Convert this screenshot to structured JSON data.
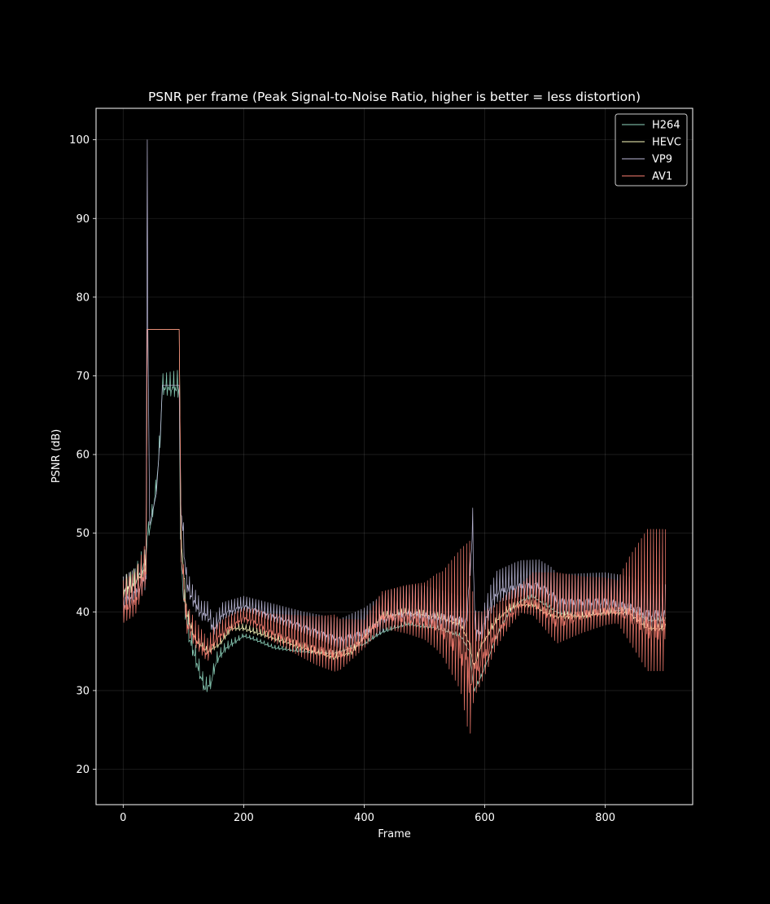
{
  "chart_data": {
    "type": "line",
    "title": "PSNR per frame (Peak Signal-to-Noise Ratio, higher is better = less distortion)",
    "xlabel": "Frame",
    "ylabel": "PSNR (dB)",
    "xlim": [
      -45,
      945
    ],
    "ylim": [
      15.5,
      104
    ],
    "xticks": [
      0,
      200,
      400,
      600,
      800
    ],
    "yticks": [
      20,
      30,
      40,
      50,
      60,
      70,
      80,
      90,
      100
    ],
    "grid": true,
    "legend_position": "top-right",
    "background": "#000000",
    "series": [
      {
        "name": "H264",
        "color": "#8fd6bf",
        "base": [
          [
            0,
            43
          ],
          [
            20,
            44
          ],
          [
            38,
            47
          ],
          [
            40,
            50
          ],
          [
            45,
            51
          ],
          [
            55,
            56
          ],
          [
            62,
            63
          ],
          [
            65,
            68.8
          ],
          [
            93,
            68.8
          ],
          [
            95,
            50
          ],
          [
            100,
            42
          ],
          [
            110,
            37
          ],
          [
            125,
            33
          ],
          [
            135,
            30.5
          ],
          [
            145,
            31
          ],
          [
            155,
            34
          ],
          [
            170,
            35.5
          ],
          [
            200,
            37
          ],
          [
            220,
            36.5
          ],
          [
            250,
            35.5
          ],
          [
            300,
            35
          ],
          [
            350,
            34.8
          ],
          [
            400,
            36
          ],
          [
            430,
            37.5
          ],
          [
            470,
            38.5
          ],
          [
            520,
            38
          ],
          [
            560,
            37
          ],
          [
            575,
            35
          ],
          [
            582,
            30
          ],
          [
            595,
            32
          ],
          [
            620,
            37
          ],
          [
            640,
            40
          ],
          [
            660,
            41.5
          ],
          [
            680,
            42
          ],
          [
            700,
            41
          ],
          [
            720,
            40
          ],
          [
            760,
            39.5
          ],
          [
            800,
            40
          ],
          [
            840,
            40.5
          ],
          [
            870,
            39
          ],
          [
            900,
            39
          ]
        ],
        "amp": [
          [
            0,
            1
          ],
          [
            30,
            2
          ],
          [
            38,
            1
          ],
          [
            95,
            2
          ],
          [
            130,
            1.2
          ],
          [
            200,
            0.3
          ],
          [
            900,
            0.3
          ]
        ],
        "period": 6
      },
      {
        "name": "HEVC",
        "color": "#ffffbf",
        "base": [
          [
            0,
            43
          ],
          [
            20,
            44
          ],
          [
            38,
            46
          ],
          [
            40,
            75.9
          ],
          [
            93,
            75.9
          ],
          [
            96,
            50
          ],
          [
            105,
            40
          ],
          [
            120,
            36.5
          ],
          [
            140,
            35
          ],
          [
            160,
            36
          ],
          [
            180,
            38
          ],
          [
            200,
            38
          ],
          [
            240,
            37
          ],
          [
            280,
            36
          ],
          [
            320,
            35
          ],
          [
            350,
            34.3
          ],
          [
            380,
            35
          ],
          [
            400,
            37
          ],
          [
            430,
            39.5
          ],
          [
            470,
            40
          ],
          [
            520,
            39.5
          ],
          [
            560,
            38.5
          ],
          [
            575,
            36
          ],
          [
            582,
            33
          ],
          [
            595,
            36
          ],
          [
            620,
            39
          ],
          [
            640,
            40.5
          ],
          [
            660,
            41
          ],
          [
            680,
            41
          ],
          [
            700,
            40
          ],
          [
            720,
            39.5
          ],
          [
            760,
            39.5
          ],
          [
            800,
            40
          ],
          [
            840,
            40
          ],
          [
            870,
            38
          ],
          [
            900,
            38
          ]
        ],
        "amp": [
          [
            0,
            1.5
          ],
          [
            38,
            1.5
          ],
          [
            40,
            0
          ],
          [
            93,
            0
          ],
          [
            96,
            1
          ],
          [
            130,
            0.5
          ],
          [
            900,
            0.5
          ]
        ],
        "period": 6
      },
      {
        "name": "VP9",
        "color": "#bebada",
        "base": [
          [
            0,
            42
          ],
          [
            20,
            43
          ],
          [
            38,
            45
          ],
          [
            40,
            100
          ],
          [
            41,
            76
          ],
          [
            44,
            51
          ],
          [
            55,
            55
          ],
          [
            62,
            63
          ],
          [
            65,
            68.8
          ],
          [
            93,
            68.8
          ],
          [
            95,
            55
          ],
          [
            105,
            44
          ],
          [
            115,
            42
          ],
          [
            130,
            40
          ],
          [
            140,
            40
          ],
          [
            150,
            38
          ],
          [
            165,
            40
          ],
          [
            200,
            41
          ],
          [
            240,
            40
          ],
          [
            280,
            39
          ],
          [
            320,
            38
          ],
          [
            360,
            37
          ],
          [
            400,
            38
          ],
          [
            440,
            40
          ],
          [
            480,
            40.5
          ],
          [
            530,
            40
          ],
          [
            570,
            39.5
          ],
          [
            580,
            51
          ],
          [
            584,
            38
          ],
          [
            595,
            38
          ],
          [
            608,
            41
          ],
          [
            620,
            43
          ],
          [
            660,
            44
          ],
          [
            690,
            44
          ],
          [
            710,
            43
          ],
          [
            722,
            42
          ],
          [
            760,
            42
          ],
          [
            800,
            42
          ],
          [
            840,
            41.5
          ],
          [
            870,
            40.5
          ],
          [
            900,
            40.5
          ]
        ],
        "amp": [
          [
            0,
            2.5
          ],
          [
            38,
            2.5
          ],
          [
            40,
            0
          ],
          [
            93,
            0
          ],
          [
            96,
            2
          ],
          [
            110,
            1.5
          ],
          [
            200,
            1
          ],
          [
            300,
            1.5
          ],
          [
            400,
            2.5
          ],
          [
            500,
            3
          ],
          [
            600,
            2
          ],
          [
            650,
            2.5
          ],
          [
            800,
            3
          ],
          [
            900,
            3
          ]
        ],
        "period": 5
      },
      {
        "name": "AV1",
        "color": "#fb8072",
        "base": [
          [
            0,
            41
          ],
          [
            20,
            42
          ],
          [
            38,
            46
          ],
          [
            40,
            75.9
          ],
          [
            93,
            75.9
          ],
          [
            96,
            48
          ],
          [
            105,
            39
          ],
          [
            120,
            37
          ],
          [
            140,
            35
          ],
          [
            150,
            36.5
          ],
          [
            170,
            38
          ],
          [
            200,
            39.5
          ],
          [
            220,
            39
          ],
          [
            240,
            38
          ],
          [
            280,
            37
          ],
          [
            320,
            36
          ],
          [
            360,
            35.5
          ],
          [
            400,
            37
          ],
          [
            430,
            40
          ],
          [
            470,
            40
          ],
          [
            520,
            39.5
          ],
          [
            560,
            38
          ],
          [
            575,
            35
          ],
          [
            582,
            34
          ],
          [
            595,
            35
          ],
          [
            620,
            38
          ],
          [
            640,
            40
          ],
          [
            660,
            41.5
          ],
          [
            680,
            42
          ],
          [
            700,
            41
          ],
          [
            720,
            40
          ],
          [
            760,
            40.5
          ],
          [
            800,
            41
          ],
          [
            840,
            41
          ],
          [
            870,
            40.5
          ],
          [
            900,
            40.5
          ]
        ],
        "amp": [
          [
            0,
            3
          ],
          [
            38,
            3
          ],
          [
            40,
            0
          ],
          [
            93,
            0
          ],
          [
            96,
            2
          ],
          [
            110,
            2
          ],
          [
            200,
            1
          ],
          [
            300,
            3
          ],
          [
            350,
            4
          ],
          [
            400,
            2
          ],
          [
            450,
            3
          ],
          [
            500,
            4
          ],
          [
            530,
            6
          ],
          [
            560,
            10
          ],
          [
            575,
            14
          ],
          [
            582,
            6
          ],
          [
            620,
            3
          ],
          [
            660,
            2
          ],
          [
            680,
            3
          ],
          [
            720,
            5
          ],
          [
            760,
            4
          ],
          [
            820,
            3
          ],
          [
            840,
            6
          ],
          [
            870,
            10
          ],
          [
            900,
            10
          ]
        ],
        "period": 5
      }
    ]
  }
}
